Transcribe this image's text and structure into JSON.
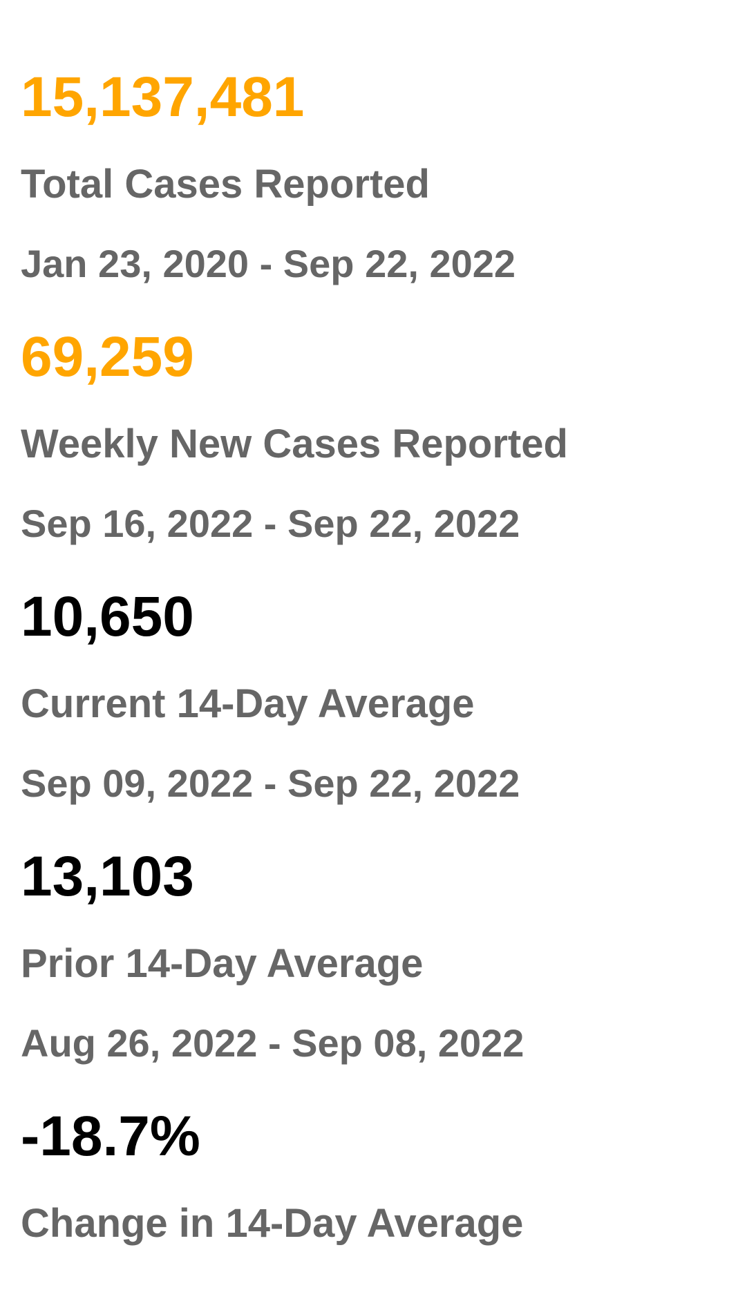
{
  "colors": {
    "highlight": "#FFA500",
    "dark": "#000000",
    "muted": "#666666"
  },
  "stats": [
    {
      "value": "15,137,481",
      "label": "Total Cases Reported",
      "range": "Jan 23, 2020 - Sep 22, 2022",
      "value_color": "#FFA500"
    },
    {
      "value": "69,259",
      "label": "Weekly New Cases Reported",
      "range": "Sep 16, 2022 - Sep 22, 2022",
      "value_color": "#FFA500"
    },
    {
      "value": "10,650",
      "label": "Current 14-Day Average",
      "range": "Sep 09, 2022 - Sep 22, 2022",
      "value_color": "#000000"
    },
    {
      "value": "13,103",
      "label": "Prior 14-Day Average",
      "range": "Aug 26, 2022 - Sep 08, 2022",
      "value_color": "#000000"
    },
    {
      "value": "-18.7%",
      "label": "Change in 14-Day Average",
      "value_color": "#000000"
    }
  ]
}
